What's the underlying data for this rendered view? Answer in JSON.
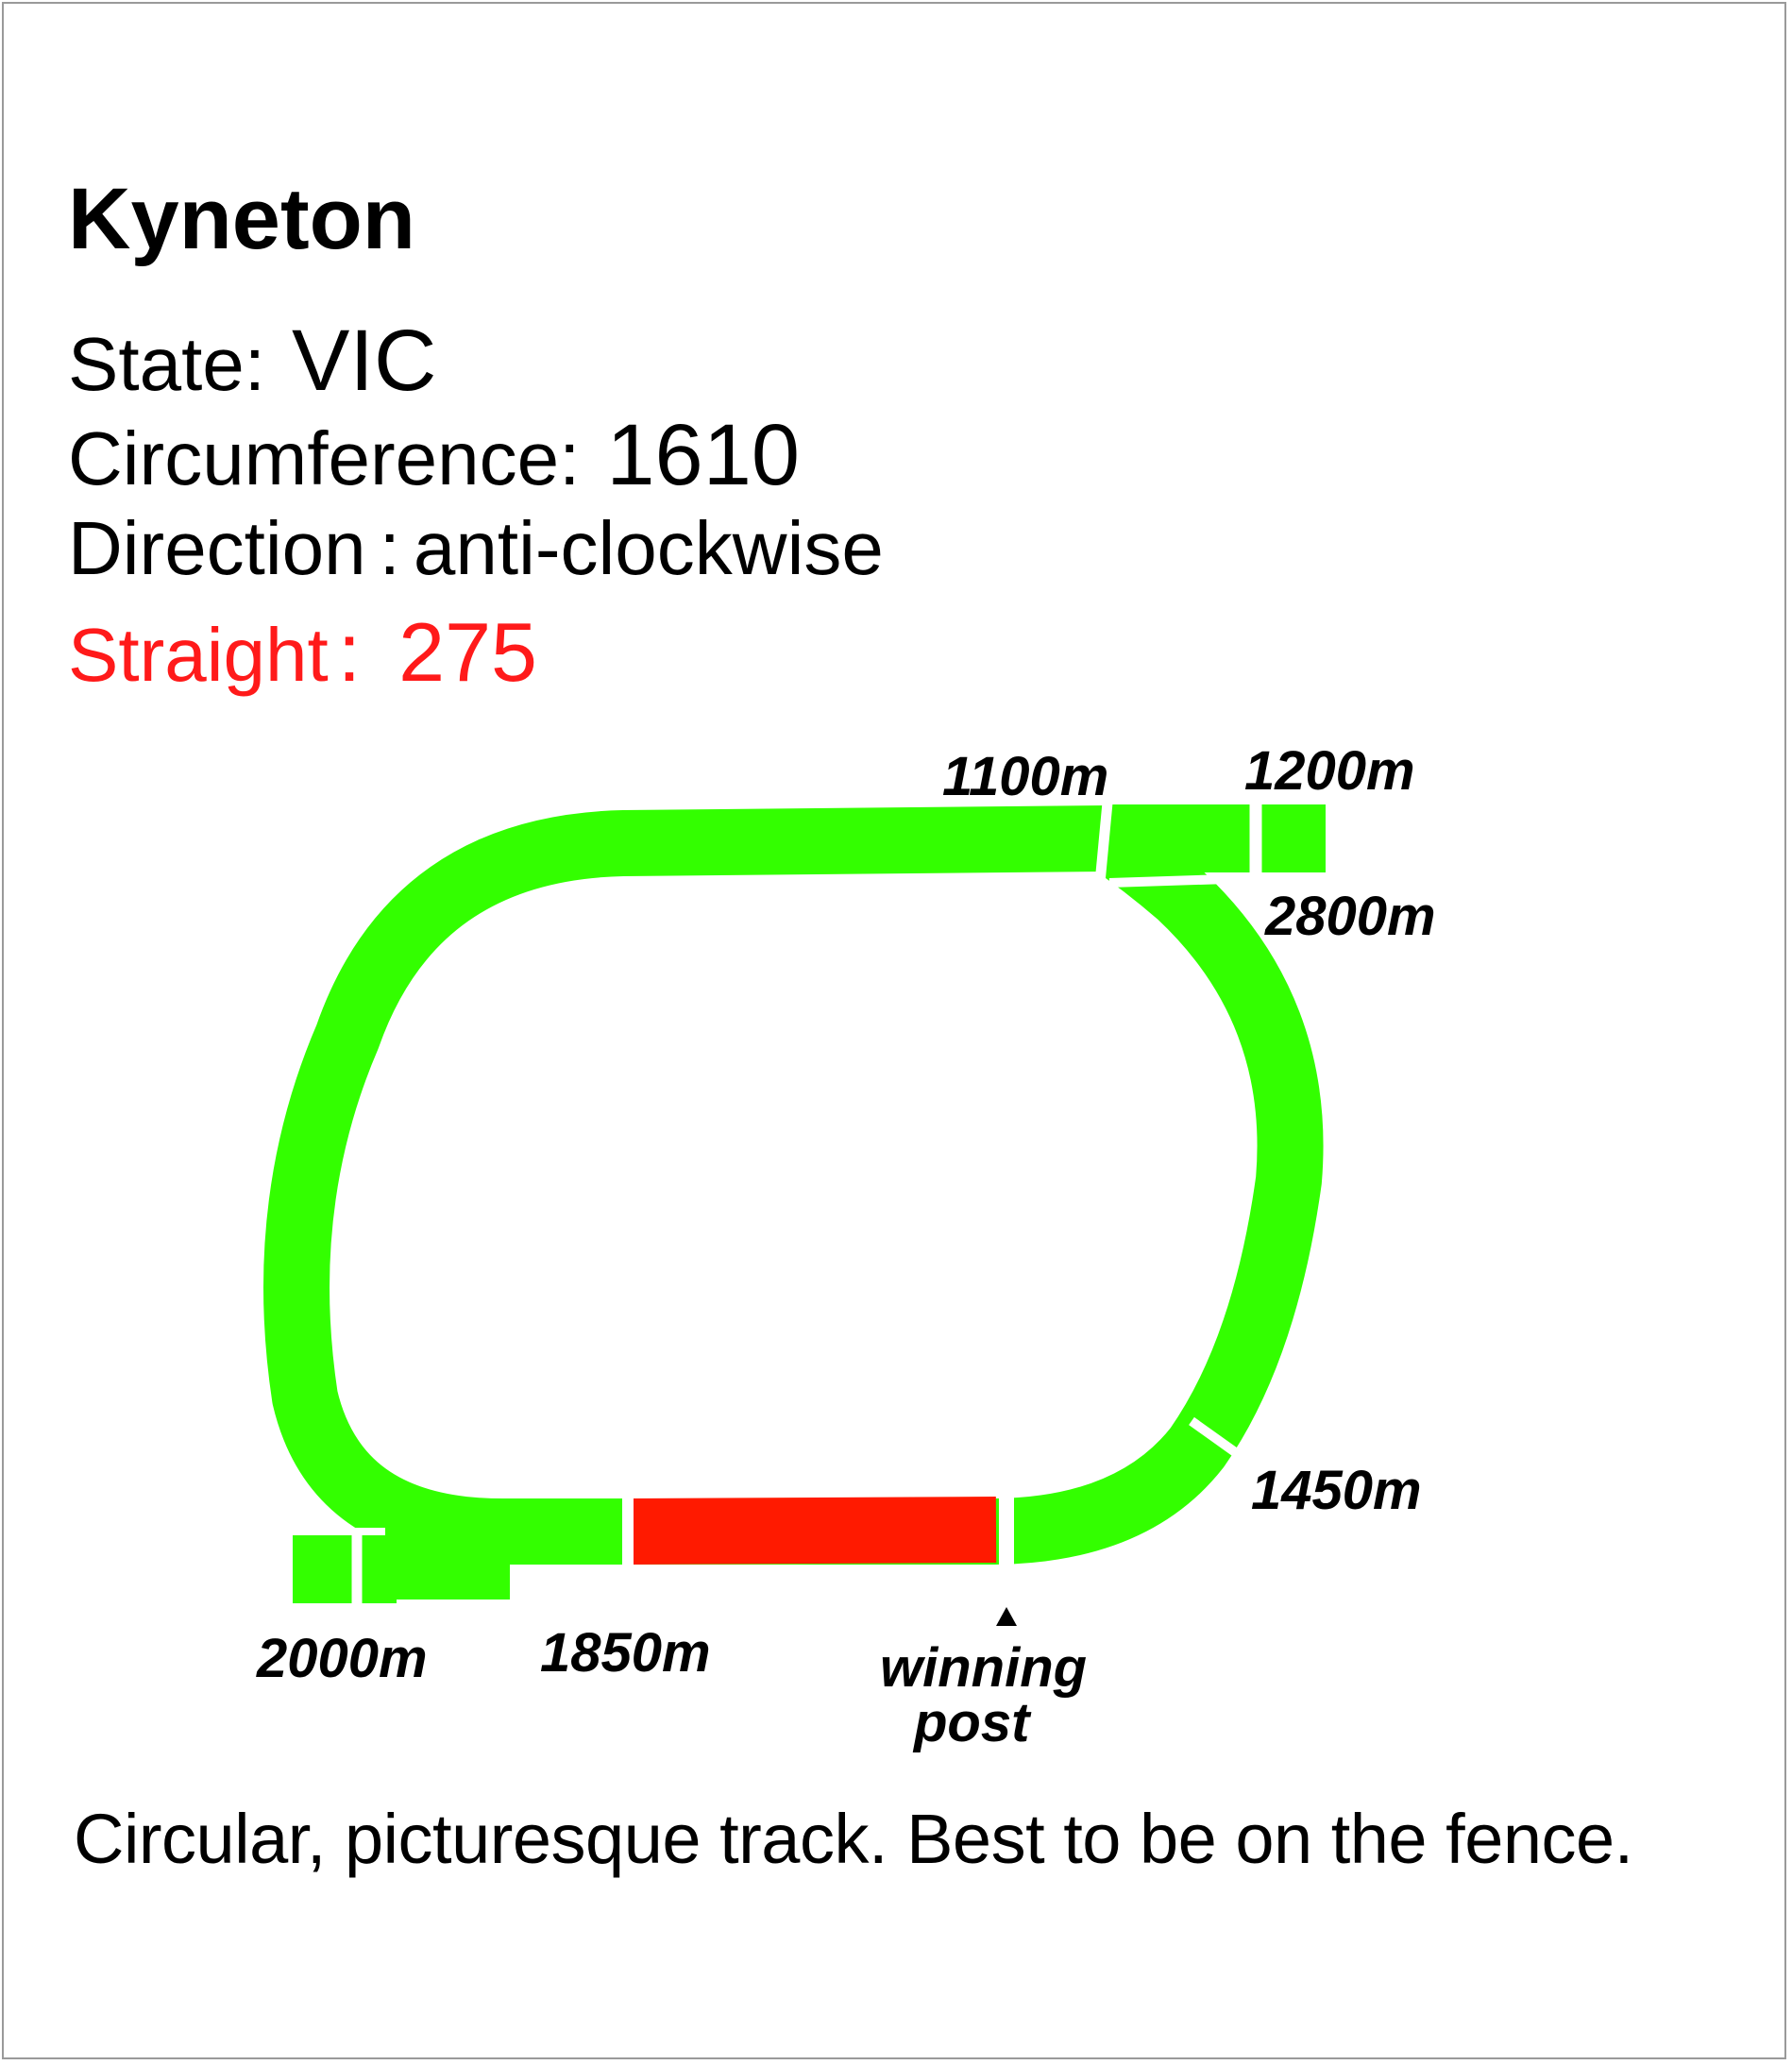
{
  "title": "Kyneton",
  "state": {
    "label": "State:",
    "value": "VIC"
  },
  "circumference": {
    "label": "Circumference:",
    "value": "1610"
  },
  "direction": {
    "label": "Direction",
    "separator": ":",
    "value": "anti-clockwise"
  },
  "straight": {
    "label": "Straight",
    "separator": ":",
    "value": "275"
  },
  "markers": {
    "m1100": "1100m",
    "m1200": "1200m",
    "m2800": "2800m",
    "m1450": "1450m",
    "m2000": "2000m",
    "m1850": "1850m",
    "winning_post_line1": "winning",
    "winning_post_line2": "post"
  },
  "description": "Circular, picturesque track. Best to be on the fence.",
  "colors": {
    "track": "#33ff00",
    "straight": "#ff1a00",
    "straight_text": "#ff1a1a",
    "text": "#000000",
    "border": "#9a9a9a"
  }
}
